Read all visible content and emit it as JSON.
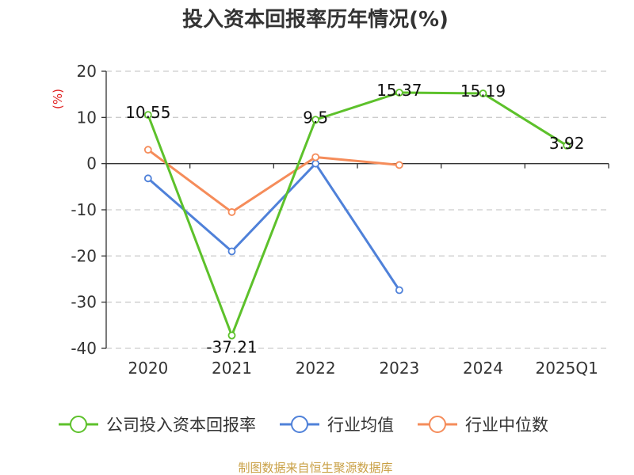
{
  "chart_data": {
    "type": "line",
    "title": "投入资本回报率历年情况(%)",
    "ylabel": "(%)",
    "categories": [
      "2020",
      "2021",
      "2022",
      "2023",
      "2024",
      "2025Q1"
    ],
    "ylim": [
      -40,
      20
    ],
    "yticks": [
      20,
      10,
      0,
      -10,
      -20,
      -30,
      -40
    ],
    "grid": true,
    "legend_position": "bottom",
    "series": [
      {
        "name": "公司投入资本回报率",
        "color": "#5dc12b",
        "values": [
          10.55,
          -37.21,
          9.5,
          15.37,
          15.19,
          3.92
        ],
        "labels": [
          "10.55",
          "-37.21",
          "9.5",
          "15.37",
          "15.19",
          "3.92"
        ]
      },
      {
        "name": "行业均值",
        "color": "#4f81d9",
        "values": [
          -3.2,
          -19.0,
          0.0,
          -27.4,
          null,
          null
        ]
      },
      {
        "name": "行业中位数",
        "color": "#f58c5a",
        "values": [
          3.0,
          -10.5,
          1.4,
          -0.3,
          null,
          null
        ]
      }
    ]
  },
  "source": "制图数据来自恒生聚源数据库",
  "colors": {
    "unit_label": "#e02020",
    "source_text": "#c9a045",
    "axis": "#333333",
    "grid": "#cccccc"
  }
}
